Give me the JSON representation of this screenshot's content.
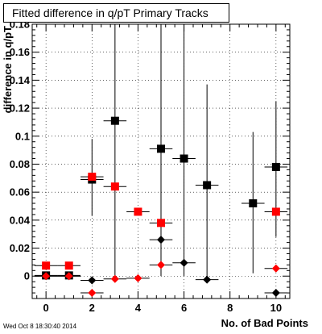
{
  "chart_data": {
    "type": "scatter",
    "title": "Fitted difference in q/pT Primary Tracks",
    "xlabel": "No. of Bad Points",
    "ylabel": "difference in q/pT",
    "xlim": [
      -0.6,
      10.6
    ],
    "ylim": [
      -0.016,
      0.18
    ],
    "grid": true,
    "xticks": [
      0,
      2,
      4,
      6,
      8,
      10
    ],
    "yticks": [
      0,
      0.02,
      0.04,
      0.06,
      0.08,
      0.1,
      0.12,
      0.14,
      0.16,
      0.18
    ],
    "ytick_labels": [
      "0",
      "0.02",
      "0.04",
      "0.06",
      "0.08",
      "0.1",
      "0.12",
      "0.14",
      "0.16",
      "0.18"
    ],
    "series": [
      {
        "marker": "square",
        "color": "#000000",
        "points": [
          {
            "x": 0,
            "y": 0.0005,
            "xerr": 0.5,
            "ylo": 0.0005,
            "yhi": 0.0005
          },
          {
            "x": 1,
            "y": 0.0005,
            "xerr": 0.5,
            "ylo": 0.0005,
            "yhi": 0.0005
          },
          {
            "x": 2,
            "y": 0.069,
            "xerr": 0.5,
            "ylo": 0.043,
            "yhi": 0.098
          },
          {
            "x": 3,
            "y": 0.111,
            "xerr": 0.5,
            "ylo": 0.0,
            "yhi": 0.18
          },
          {
            "x": 5,
            "y": 0.091,
            "xerr": 0.5,
            "ylo": 0.0,
            "yhi": 0.18
          },
          {
            "x": 6,
            "y": 0.084,
            "xerr": 0.5,
            "ylo": 0.0,
            "yhi": 0.18
          },
          {
            "x": 7,
            "y": 0.065,
            "xerr": 0.5,
            "ylo": 0.0,
            "yhi": 0.137
          },
          {
            "x": 9,
            "y": 0.052,
            "xerr": 0.5,
            "ylo": 0.002,
            "yhi": 0.103
          },
          {
            "x": 10,
            "y": 0.078,
            "xerr": 0.5,
            "ylo": 0.028,
            "yhi": 0.125
          }
        ]
      },
      {
        "marker": "square",
        "color": "#ff0000",
        "points": [
          {
            "x": 0,
            "y": 0.0075,
            "xerr": 0.5,
            "ylo": 0.0075,
            "yhi": 0.0075
          },
          {
            "x": 1,
            "y": 0.0075,
            "xerr": 0.5,
            "ylo": 0.0075,
            "yhi": 0.0075
          },
          {
            "x": 2,
            "y": 0.071,
            "xerr": 0.5,
            "ylo": 0.071,
            "yhi": 0.071
          },
          {
            "x": 3,
            "y": 0.064,
            "xerr": 0.5,
            "ylo": 0.064,
            "yhi": 0.064
          },
          {
            "x": 4,
            "y": 0.046,
            "xerr": 0.5,
            "ylo": 0.046,
            "yhi": 0.046
          },
          {
            "x": 5,
            "y": 0.038,
            "xerr": 0.5,
            "ylo": 0.038,
            "yhi": 0.038
          },
          {
            "x": 10,
            "y": 0.046,
            "xerr": 0.5,
            "ylo": 0.046,
            "yhi": 0.046
          }
        ]
      },
      {
        "marker": "diamond",
        "color": "#000000",
        "points": [
          {
            "x": 0,
            "y": 0.0,
            "xerr": 0.5,
            "ylo": 0.0,
            "yhi": 0.0
          },
          {
            "x": 1,
            "y": 0.0,
            "xerr": 0.5,
            "ylo": 0.0,
            "yhi": 0.0
          },
          {
            "x": 2,
            "y": -0.003,
            "xerr": 0.5,
            "ylo": -0.003,
            "yhi": -0.003
          },
          {
            "x": 5,
            "y": 0.026,
            "xerr": 0.5,
            "ylo": 0.026,
            "yhi": 0.026
          },
          {
            "x": 6,
            "y": 0.0095,
            "xerr": 0.5,
            "ylo": 0.0095,
            "yhi": 0.0095
          },
          {
            "x": 7,
            "y": -0.0025,
            "xerr": 0.5,
            "ylo": -0.0025,
            "yhi": -0.0025
          },
          {
            "x": 10,
            "y": -0.012,
            "xerr": 0.5,
            "ylo": -0.012,
            "yhi": -0.012
          }
        ]
      },
      {
        "marker": "diamond",
        "color": "#ff0000",
        "points": [
          {
            "x": 0,
            "y": 0.0,
            "xerr": 0.5,
            "ylo": 0.0,
            "yhi": 0.0
          },
          {
            "x": 1,
            "y": 0.0,
            "xerr": 0.5,
            "ylo": 0.0,
            "yhi": 0.0
          },
          {
            "x": 2,
            "y": -0.012,
            "xerr": 0.5,
            "ylo": -0.012,
            "yhi": -0.012
          },
          {
            "x": 3,
            "y": -0.002,
            "xerr": 0.5,
            "ylo": -0.002,
            "yhi": -0.002
          },
          {
            "x": 4,
            "y": -0.0015,
            "xerr": 0.5,
            "ylo": -0.0015,
            "yhi": -0.0015
          },
          {
            "x": 5,
            "y": 0.008,
            "xerr": 0.5,
            "ylo": 0.008,
            "yhi": 0.008
          },
          {
            "x": 10,
            "y": 0.0055,
            "xerr": 0.5,
            "ylo": 0.0055,
            "yhi": 0.0055
          }
        ]
      }
    ]
  },
  "footer": {
    "timestamp": "Wed Oct  8 18:30:40 2014"
  }
}
